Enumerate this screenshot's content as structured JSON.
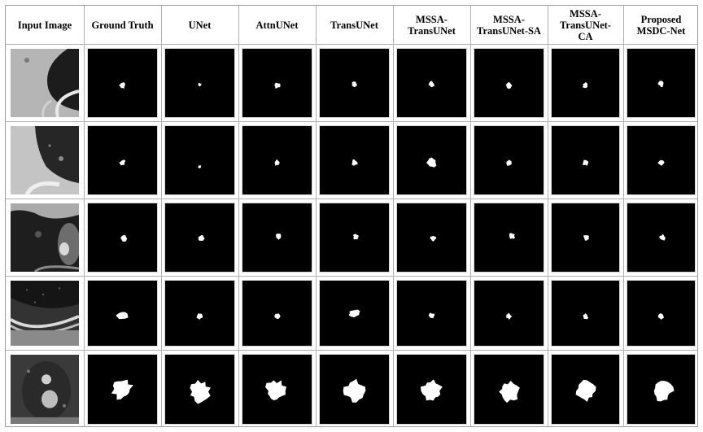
{
  "figure": {
    "columns": [
      "Input Image",
      "Ground Truth",
      "UNet",
      "AttnUNet",
      "TransUNet",
      "MSSA-\nTransUNet",
      "MSSA-\nTransUNet-SA",
      "MSSA-\nTransUNet-\nCA",
      "Proposed\nMSDC-Net"
    ],
    "rows": [
      {
        "ct_image": "ct-slice-lung-wall-1",
        "masks": [
          "small-nodule-mask",
          "tiny-nodule-mask",
          "small-nodule-mask",
          "small-nodule-mask",
          "small-nodule-mask",
          "small-nodule-mask",
          "small-nodule-mask",
          "small-nodule-mask"
        ]
      },
      {
        "ct_image": "ct-slice-lung-wall-2",
        "masks": [
          "small-nodule-mask",
          "tiny-nodule-mask",
          "small-nodule-mask",
          "small-nodule-mask",
          "medium-nodule-mask",
          "small-nodule-mask",
          "small-nodule-mask",
          "small-nodule-mask"
        ]
      },
      {
        "ct_image": "ct-slice-lung-vessel",
        "masks": [
          "small-nodule-mask",
          "small-nodule-mask",
          "small-nodule-mask",
          "small-nodule-mask",
          "small-nodule-mask",
          "small-nodule-mask",
          "small-nodule-mask",
          "small-nodule-mask"
        ]
      },
      {
        "ct_image": "ct-slice-lung-pleura",
        "masks": [
          "elongated-nodule-mask",
          "small-nodule-mask",
          "small-nodule-mask",
          "elongated-nodule-mask",
          "small-nodule-mask",
          "small-nodule-mask",
          "small-nodule-mask",
          "small-nodule-mask"
        ]
      },
      {
        "ct_image": "ct-slice-large-nodule",
        "masks": [
          "large-nodule-mask",
          "large-nodule-mask",
          "large-nodule-mask",
          "large-nodule-mask",
          "large-nodule-mask",
          "large-nodule-mask",
          "large-nodule-mask",
          "large-nodule-mask"
        ]
      }
    ]
  }
}
